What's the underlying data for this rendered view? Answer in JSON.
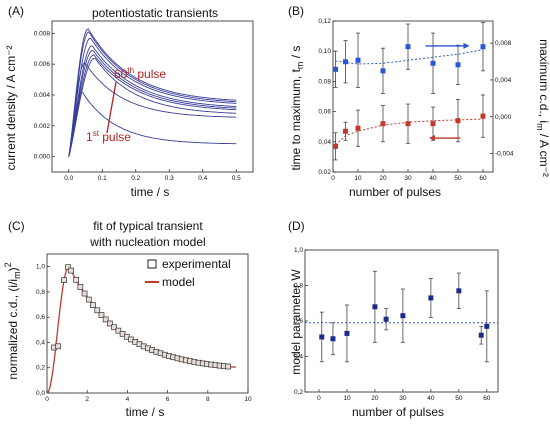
{
  "chart_data": [
    {
      "id": "A",
      "type": "line",
      "panel_label": "(A)",
      "title": "potentiostatic transients",
      "xlabel": "time / s",
      "ylabel": "current density / A cm⁻²",
      "xlim": [
        -0.05,
        0.55
      ],
      "ylim": [
        -0.001,
        0.0088
      ],
      "xticks": [
        0.0,
        0.1,
        0.2,
        0.3,
        0.4,
        0.5
      ],
      "xtick_labels": [
        "0.0",
        "0.1",
        "0.2",
        "0.3",
        "0.4",
        "0.5"
      ],
      "yticks": [
        0.0,
        0.002,
        0.004,
        0.006,
        0.008
      ],
      "ytick_labels": [
        "0.000",
        "0.002",
        "0.004",
        "0.006",
        "0.008"
      ],
      "annotations": [
        {
          "text": "60",
          "sup": "th",
          "rest": " pulse",
          "color": "#b22222"
        },
        {
          "text": "1",
          "sup": "st",
          "rest": " pulse",
          "color": "#b22222"
        }
      ],
      "series": [
        {
          "peak_t": 0.058,
          "peak": 0.0083,
          "tail": 0.0035,
          "tau": 0.13
        },
        {
          "peak_t": 0.06,
          "peak": 0.0081,
          "tail": 0.0034,
          "tau": 0.13
        },
        {
          "peak_t": 0.065,
          "peak": 0.0077,
          "tail": 0.0033,
          "tau": 0.13
        },
        {
          "peak_t": 0.07,
          "peak": 0.0072,
          "tail": 0.0031,
          "tau": 0.13
        },
        {
          "peak_t": 0.072,
          "peak": 0.0069,
          "tail": 0.003,
          "tau": 0.13
        },
        {
          "peak_t": 0.075,
          "peak": 0.0066,
          "tail": 0.0029,
          "tau": 0.13
        },
        {
          "peak_t": 0.078,
          "peak": 0.0064,
          "tail": 0.0027,
          "tau": 0.12
        },
        {
          "peak_t": 0.048,
          "peak": 0.0061,
          "tail": 0.0025,
          "tau": 0.11
        },
        {
          "peak_t": 0.04,
          "peak": 0.0042,
          "tail": 0.0008,
          "tau": 0.1
        }
      ],
      "line_color": "#3a3f9a"
    },
    {
      "id": "B",
      "type": "scatter",
      "panel_label": "(B)",
      "xlabel": "number of pulses",
      "ylabel_left": "time to maximum, t",
      "ylabel_left_sub": "m",
      "ylabel_left_unit": " / s",
      "ylabel_right": "maximum c.d., i",
      "ylabel_right_sub": "m",
      "ylabel_right_unit": " / A cm⁻²",
      "xlim": [
        0,
        64
      ],
      "ylim_left": [
        0.02,
        0.12
      ],
      "ylim_right": [
        -0.006,
        0.0104
      ],
      "xticks": [
        0,
        10,
        20,
        30,
        40,
        50,
        60
      ],
      "yticks_left": [
        0.02,
        0.04,
        0.06,
        0.08,
        0.1,
        0.12
      ],
      "yticks_left_labels": [
        "0,02",
        "0,04",
        "0,06",
        "0,08",
        "0,10",
        "0,12"
      ],
      "yticks_right": [
        -0.004,
        0.0,
        0.004,
        0.008
      ],
      "yticks_right_labels": [
        "-0,004",
        "0,000",
        "0,004",
        "0,008"
      ],
      "series": [
        {
          "axis": "left",
          "color": "#2a57d6",
          "x": [
            1,
            5,
            10,
            20,
            30,
            40,
            50,
            60
          ],
          "y": [
            0.088,
            0.093,
            0.094,
            0.087,
            0.103,
            0.092,
            0.091,
            0.103
          ],
          "err": [
            0.012,
            0.014,
            0.018,
            0.015,
            0.015,
            0.02,
            0.013,
            0.016
          ],
          "trend": [
            0.0935,
            0.0925,
            0.0915,
            0.092,
            0.094,
            0.096,
            0.098,
            0.101
          ]
        },
        {
          "axis": "left",
          "color": "#c0392b",
          "x": [
            1,
            5,
            10,
            20,
            30,
            40,
            50,
            60
          ],
          "y": [
            0.037,
            0.047,
            0.049,
            0.052,
            0.052,
            0.052,
            0.054,
            0.057
          ],
          "err": [
            0.009,
            0.006,
            0.012,
            0.012,
            0.013,
            0.011,
            0.014,
            0.014
          ],
          "trend": [
            0.038,
            0.044,
            0.047,
            0.051,
            0.053,
            0.054,
            0.0545,
            0.055
          ]
        }
      ],
      "arrow_blue_color": "#2a57d6",
      "arrow_red_color": "#c0392b"
    },
    {
      "id": "C",
      "type": "scatter",
      "panel_label": "(C)",
      "title": "fit of typical transient",
      "subtitle": "with nucleation model",
      "xlabel": "time / s",
      "ylabel": "normalized c.d., (i/i",
      "ylabel_sub": "m",
      "ylabel_end": ")",
      "ylabel_sup": "2",
      "xlim": [
        0,
        10
      ],
      "ylim": [
        0,
        1.1
      ],
      "xticks": [
        0,
        2,
        4,
        6,
        8,
        10
      ],
      "yticks": [
        0.0,
        0.2,
        0.4,
        0.6,
        0.8,
        1.0
      ],
      "ytick_labels": [
        "0,0",
        "0,2",
        "0,4",
        "0,6",
        "0,8",
        "1,0"
      ],
      "legend": [
        {
          "label": "experimental",
          "kind": "square"
        },
        {
          "label": "model",
          "kind": "line",
          "color": "#c0392b"
        }
      ],
      "model_color": "#c0392b",
      "marker_fill": "#e8ddd8",
      "tm": 1.1,
      "n_points": 42
    },
    {
      "id": "D",
      "type": "scatter",
      "panel_label": "(D)",
      "xlabel": "number of pulses",
      "ylabel": "model parameter W",
      "xlim": [
        -5,
        64
      ],
      "ylim": [
        0.2,
        1.0
      ],
      "xticks": [
        0,
        10,
        20,
        30,
        40,
        50,
        60
      ],
      "yticks": [
        0.2,
        0.4,
        0.6,
        0.8,
        1.0
      ],
      "ytick_labels": [
        "0,2",
        "0,4",
        "0,6",
        "0,8",
        "1,0"
      ],
      "color": "#1a2b8a",
      "x": [
        1,
        5,
        10,
        20,
        24,
        30,
        40,
        50,
        58,
        60
      ],
      "y": [
        0.51,
        0.5,
        0.53,
        0.68,
        0.61,
        0.63,
        0.73,
        0.77,
        0.52,
        0.57
      ],
      "err": [
        0.14,
        0.09,
        0.16,
        0.2,
        0.06,
        0.15,
        0.11,
        0.1,
        0.05,
        0.2
      ],
      "mean_line": 0.59,
      "mean_color": "#2a57d6"
    }
  ]
}
